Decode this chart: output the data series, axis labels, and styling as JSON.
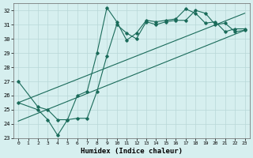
{
  "xlabel": "Humidex (Indice chaleur)",
  "background_color": "#d6efef",
  "grid_color": "#b8d8d8",
  "line_color": "#1a6b5a",
  "xlim": [
    -0.5,
    23.5
  ],
  "ylim": [
    23,
    32.5
  ],
  "yticks": [
    23,
    24,
    25,
    26,
    27,
    28,
    29,
    30,
    31,
    32
  ],
  "xticks": [
    0,
    1,
    2,
    3,
    4,
    5,
    6,
    7,
    8,
    9,
    10,
    11,
    12,
    13,
    14,
    15,
    16,
    17,
    18,
    19,
    20,
    21,
    22,
    23
  ],
  "line1_x": [
    0,
    2,
    3,
    4,
    5,
    6,
    7,
    8,
    9,
    10,
    11,
    12,
    13,
    14,
    15,
    16,
    17,
    18,
    19,
    20,
    21,
    22,
    23
  ],
  "line1_y": [
    27.0,
    25.2,
    25.0,
    24.3,
    24.3,
    26.0,
    26.3,
    29.0,
    32.2,
    31.2,
    29.9,
    30.4,
    31.3,
    31.2,
    31.3,
    31.4,
    32.1,
    31.8,
    31.1,
    31.2,
    30.5,
    30.7,
    30.7
  ],
  "line2_x": [
    0,
    2,
    3,
    4,
    5,
    6,
    7,
    8,
    9,
    10,
    11,
    12,
    13,
    14,
    15,
    16,
    17,
    18,
    19,
    20,
    21,
    22,
    23
  ],
  "line2_y": [
    25.5,
    25.0,
    24.3,
    23.2,
    24.3,
    24.4,
    24.4,
    26.3,
    28.8,
    31.0,
    30.4,
    30.0,
    31.2,
    31.0,
    31.2,
    31.3,
    31.3,
    32.0,
    31.8,
    31.0,
    31.1,
    30.5,
    30.6
  ],
  "line3_x": [
    0,
    23
  ],
  "line3_y": [
    25.5,
    31.8
  ],
  "line4_x": [
    0,
    23
  ],
  "line4_y": [
    24.2,
    30.6
  ]
}
